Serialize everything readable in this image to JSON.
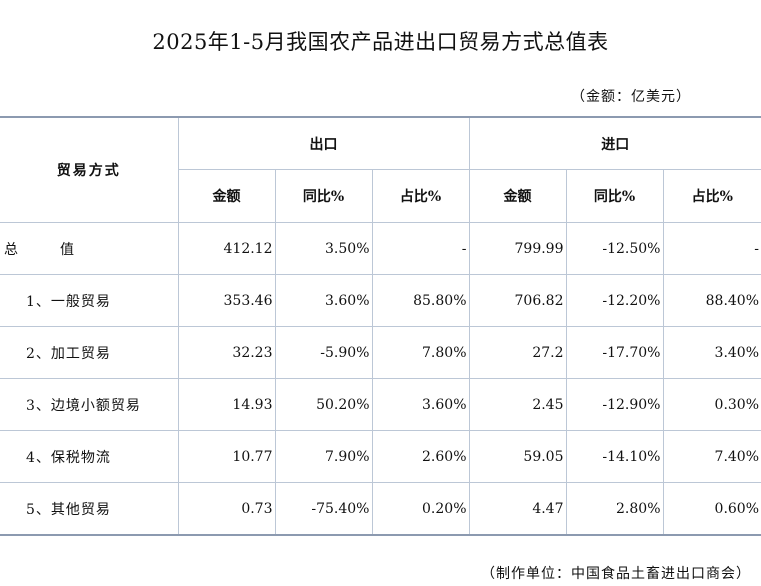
{
  "title": "2025年1-5月我国农产品进出口贸易方式总值表",
  "unit": "（金额：亿美元）",
  "source": "（制作单位：中国食品土畜进出口商会）",
  "table": {
    "type_header": "贸易方式",
    "export_header": "出口",
    "import_header": "进口",
    "sub_headers": [
      "金额",
      "同比%",
      "占比%",
      "金额",
      "同比%",
      "占比%"
    ],
    "rows": [
      {
        "label": "总　值",
        "cells": [
          "412.12",
          "3.50%",
          "-",
          "799.99",
          "-12.50%",
          "-"
        ]
      },
      {
        "label": "1、一般贸易",
        "cells": [
          "353.46",
          "3.60%",
          "85.80%",
          "706.82",
          "-12.20%",
          "88.40%"
        ]
      },
      {
        "label": "2、加工贸易",
        "cells": [
          "32.23",
          "-5.90%",
          "7.80%",
          "27.2",
          "-17.70%",
          "3.40%"
        ]
      },
      {
        "label": "3、边境小额贸易",
        "cells": [
          "14.93",
          "50.20%",
          "3.60%",
          "2.45",
          "-12.90%",
          "0.30%"
        ]
      },
      {
        "label": "4、保税物流",
        "cells": [
          "10.77",
          "7.90%",
          "2.60%",
          "59.05",
          "-14.10%",
          "7.40%"
        ]
      },
      {
        "label": "5、其他贸易",
        "cells": [
          "0.73",
          "-75.40%",
          "0.20%",
          "4.47",
          "2.80%",
          "0.60%"
        ]
      }
    ]
  }
}
